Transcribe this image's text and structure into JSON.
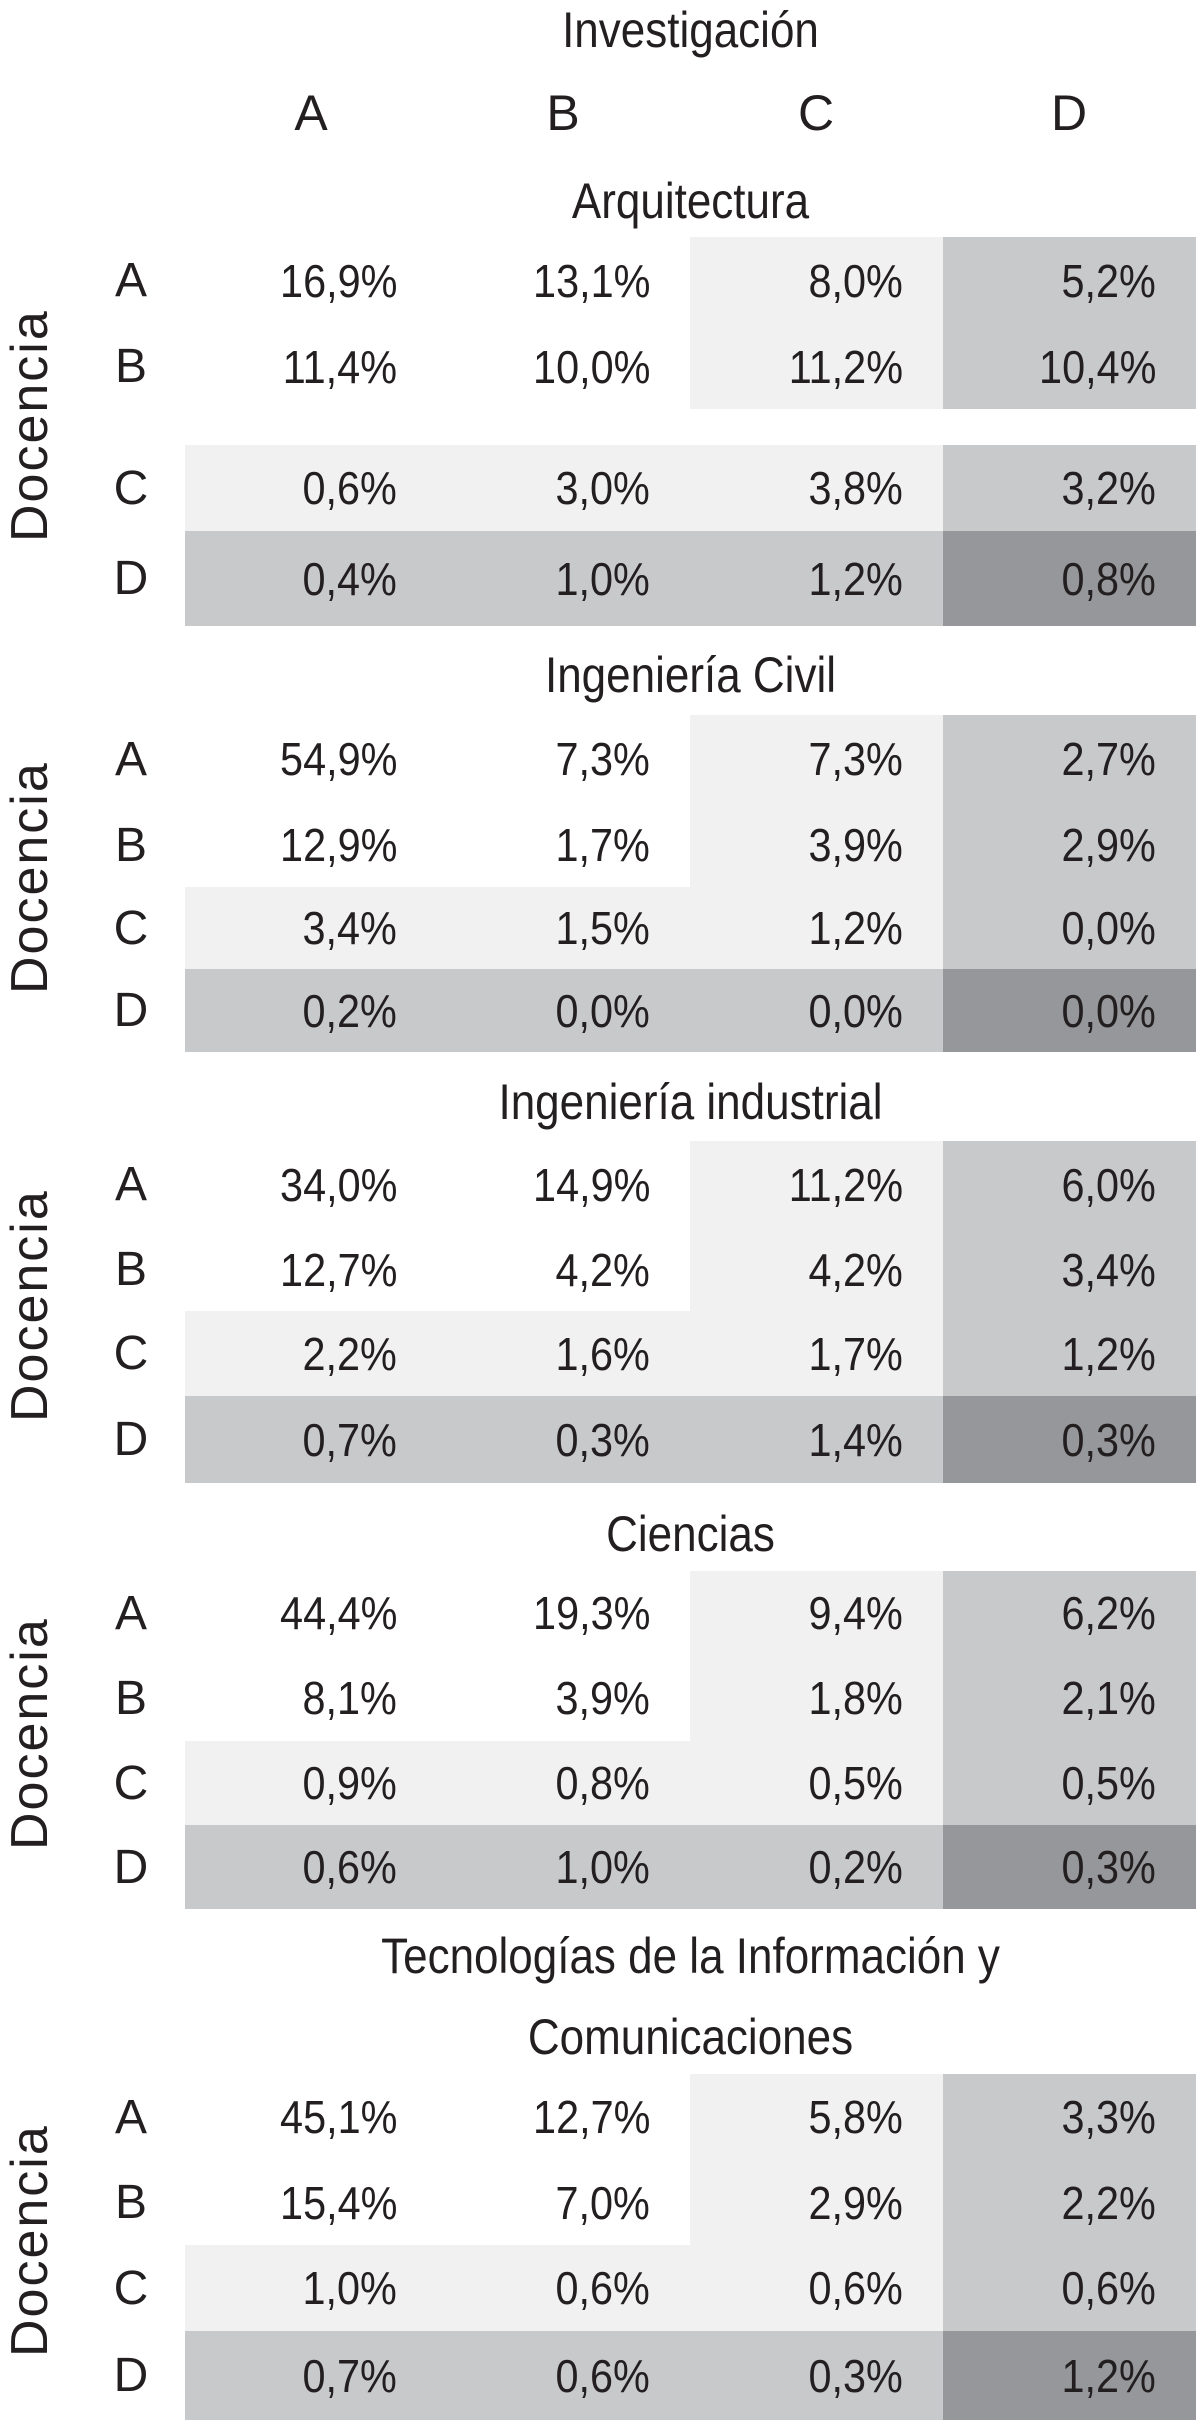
{
  "chart_data": {
    "type": "table",
    "title": "Investigación",
    "column_axis_label": "Investigación",
    "row_axis_label": "Docencia",
    "columns": [
      "A",
      "B",
      "C",
      "D"
    ],
    "rows": [
      "A",
      "B",
      "C",
      "D"
    ],
    "shading_colors": {
      "white": "#ffffff",
      "light": "#f0f1f0",
      "medium": "#c8c9cb",
      "dark": "#96979a"
    },
    "sections": [
      {
        "title": "Arquitectura",
        "values": [
          [
            "16,9%",
            "13,1%",
            "8,0%",
            "5,2%"
          ],
          [
            "11,4%",
            "10,0%",
            "11,2%",
            "10,4%"
          ],
          [
            "0,6%",
            "3,0%",
            "3,8%",
            "3,2%"
          ],
          [
            "0,4%",
            "1,0%",
            "1,2%",
            "0,8%"
          ]
        ]
      },
      {
        "title": "Ingeniería Civil",
        "values": [
          [
            "54,9%",
            "7,3%",
            "7,3%",
            "2,7%"
          ],
          [
            "12,9%",
            "1,7%",
            "3,9%",
            "2,9%"
          ],
          [
            "3,4%",
            "1,5%",
            "1,2%",
            "0,0%"
          ],
          [
            "0,2%",
            "0,0%",
            "0,0%",
            "0,0%"
          ]
        ]
      },
      {
        "title": "Ingeniería industrial",
        "values": [
          [
            "34,0%",
            "14,9%",
            "11,2%",
            "6,0%"
          ],
          [
            "12,7%",
            "4,2%",
            "4,2%",
            "3,4%"
          ],
          [
            "2,2%",
            "1,6%",
            "1,7%",
            "1,2%"
          ],
          [
            "0,7%",
            "0,3%",
            "1,4%",
            "0,3%"
          ]
        ]
      },
      {
        "title": "Ciencias",
        "values": [
          [
            "44,4%",
            "19,3%",
            "9,4%",
            "6,2%"
          ],
          [
            "8,1%",
            "3,9%",
            "1,8%",
            "2,1%"
          ],
          [
            "0,9%",
            "0,8%",
            "0,5%",
            "0,5%"
          ],
          [
            "0,6%",
            "1,0%",
            "0,2%",
            "0,3%"
          ]
        ]
      },
      {
        "title": "Tecnologías de la Información y",
        "title2": "Comunicaciones",
        "values": [
          [
            "45,1%",
            "12,7%",
            "5,8%",
            "3,3%"
          ],
          [
            "15,4%",
            "7,0%",
            "2,9%",
            "2,2%"
          ],
          [
            "1,0%",
            "0,6%",
            "0,6%",
            "0,6%"
          ],
          [
            "0,7%",
            "0,6%",
            "0,3%",
            "1,2%"
          ]
        ]
      }
    ]
  }
}
